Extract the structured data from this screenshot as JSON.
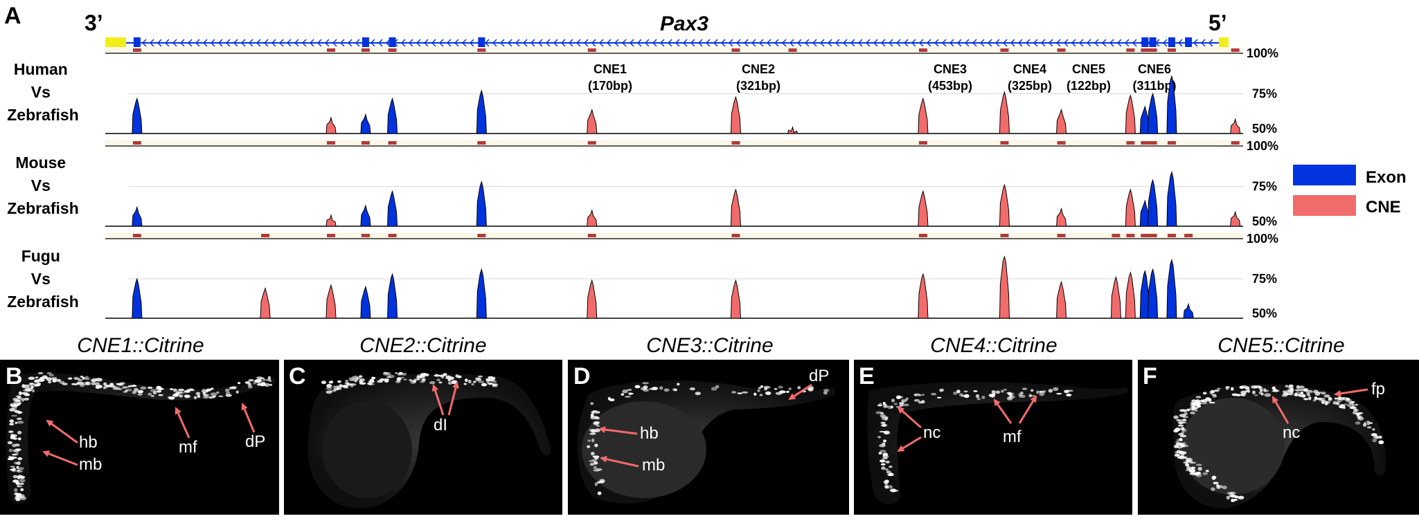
{
  "panel_a": {
    "letter": "A",
    "gene": "Pax3",
    "end_left": "3’",
    "end_right": "5’",
    "y_ticks": [
      "100%",
      "75%",
      "50%"
    ],
    "tracks": [
      {
        "line1": "Human",
        "line2": "Vs",
        "line3": "Zebrafish"
      },
      {
        "line1": "Mouse",
        "line2": "Vs",
        "line3": "Zebrafish"
      },
      {
        "line1": "Fugu",
        "line2": "Vs",
        "line3": "Zebrafish"
      }
    ],
    "cne_labels": [
      {
        "name": "CNE1",
        "size": "(170bp)"
      },
      {
        "name": "CNE2",
        "size": "(321bp)"
      },
      {
        "name": "CNE3",
        "size": "(453bp)"
      },
      {
        "name": "CNE4",
        "size": "(325bp)"
      },
      {
        "name": "CNE5",
        "size": "(122bp)"
      },
      {
        "name": "CNE6",
        "size": "(311bp)"
      }
    ],
    "legend": [
      {
        "label": "Exon",
        "color": "#0033dd"
      },
      {
        "label": "CNE",
        "color": "#f26b6b"
      }
    ]
  },
  "chart_data": {
    "type": "area",
    "title": "Pax3",
    "ylim": [
      50,
      100
    ],
    "y_ticks": [
      100,
      75,
      50
    ],
    "element_types": [
      "Exon",
      "CNE"
    ],
    "series": [
      {
        "name": "Human Vs Zebrafish",
        "peaks": [
          {
            "x": 0.008,
            "y": 72,
            "kind": "Exon"
          },
          {
            "x": 0.182,
            "y": 60,
            "kind": "CNE"
          },
          {
            "x": 0.213,
            "y": 62,
            "kind": "Exon"
          },
          {
            "x": 0.237,
            "y": 72,
            "kind": "Exon"
          },
          {
            "x": 0.317,
            "y": 77,
            "kind": "Exon"
          },
          {
            "x": 0.416,
            "y": 65,
            "kind": "CNE"
          },
          {
            "x": 0.545,
            "y": 73,
            "kind": "CNE"
          },
          {
            "x": 0.596,
            "y": 54,
            "kind": "CNE"
          },
          {
            "x": 0.713,
            "y": 72,
            "kind": "CNE"
          },
          {
            "x": 0.786,
            "y": 76,
            "kind": "CNE"
          },
          {
            "x": 0.837,
            "y": 65,
            "kind": "CNE"
          },
          {
            "x": 0.899,
            "y": 74,
            "kind": "CNE"
          },
          {
            "x": 0.912,
            "y": 67,
            "kind": "Exon"
          },
          {
            "x": 0.919,
            "y": 75,
            "kind": "Exon"
          },
          {
            "x": 0.936,
            "y": 86,
            "kind": "Exon"
          },
          {
            "x": 0.993,
            "y": 59,
            "kind": "CNE"
          }
        ]
      },
      {
        "name": "Mouse Vs Zebrafish",
        "peaks": [
          {
            "x": 0.008,
            "y": 62,
            "kind": "Exon"
          },
          {
            "x": 0.182,
            "y": 57,
            "kind": "CNE"
          },
          {
            "x": 0.213,
            "y": 63,
            "kind": "Exon"
          },
          {
            "x": 0.237,
            "y": 72,
            "kind": "Exon"
          },
          {
            "x": 0.317,
            "y": 78,
            "kind": "Exon"
          },
          {
            "x": 0.416,
            "y": 60,
            "kind": "CNE"
          },
          {
            "x": 0.545,
            "y": 73,
            "kind": "CNE"
          },
          {
            "x": 0.713,
            "y": 72,
            "kind": "CNE"
          },
          {
            "x": 0.786,
            "y": 76,
            "kind": "CNE"
          },
          {
            "x": 0.837,
            "y": 61,
            "kind": "CNE"
          },
          {
            "x": 0.899,
            "y": 73,
            "kind": "CNE"
          },
          {
            "x": 0.912,
            "y": 66,
            "kind": "Exon"
          },
          {
            "x": 0.919,
            "y": 79,
            "kind": "Exon"
          },
          {
            "x": 0.936,
            "y": 84,
            "kind": "Exon"
          },
          {
            "x": 0.993,
            "y": 59,
            "kind": "CNE"
          }
        ]
      },
      {
        "name": "Fugu Vs Zebrafish",
        "peaks": [
          {
            "x": 0.008,
            "y": 75,
            "kind": "Exon"
          },
          {
            "x": 0.123,
            "y": 69,
            "kind": "CNE"
          },
          {
            "x": 0.182,
            "y": 71,
            "kind": "CNE"
          },
          {
            "x": 0.213,
            "y": 70,
            "kind": "Exon"
          },
          {
            "x": 0.237,
            "y": 78,
            "kind": "Exon"
          },
          {
            "x": 0.317,
            "y": 81,
            "kind": "Exon"
          },
          {
            "x": 0.416,
            "y": 74,
            "kind": "CNE"
          },
          {
            "x": 0.545,
            "y": 74,
            "kind": "CNE"
          },
          {
            "x": 0.713,
            "y": 78,
            "kind": "CNE"
          },
          {
            "x": 0.786,
            "y": 89,
            "kind": "CNE"
          },
          {
            "x": 0.837,
            "y": 73,
            "kind": "CNE"
          },
          {
            "x": 0.886,
            "y": 76,
            "kind": "CNE"
          },
          {
            "x": 0.899,
            "y": 79,
            "kind": "CNE"
          },
          {
            "x": 0.912,
            "y": 80,
            "kind": "Exon"
          },
          {
            "x": 0.919,
            "y": 81,
            "kind": "Exon"
          },
          {
            "x": 0.936,
            "y": 87,
            "kind": "Exon"
          },
          {
            "x": 0.951,
            "y": 59,
            "kind": "Exon"
          }
        ]
      }
    ]
  },
  "image_panels": [
    {
      "letter": "B",
      "title": "CNE1::Citrine",
      "labels": [
        "hb",
        "mb",
        "mf",
        "dP"
      ]
    },
    {
      "letter": "C",
      "title": "CNE2::Citrine",
      "labels": [
        "dI"
      ]
    },
    {
      "letter": "D",
      "title": "CNE3::Citrine",
      "labels": [
        "hb",
        "mb",
        "dP"
      ]
    },
    {
      "letter": "E",
      "title": "CNE4::Citrine",
      "labels": [
        "nc",
        "mf"
      ]
    },
    {
      "letter": "F",
      "title": "CNE5::Citrine",
      "labels": [
        "fp",
        "nc"
      ]
    }
  ],
  "colors": {
    "exon": "#0033dd",
    "cne": "#f26b6b",
    "utr": "#f2ee1a",
    "arrow": "#f26b6b",
    "track_line": "#b33a3a"
  }
}
